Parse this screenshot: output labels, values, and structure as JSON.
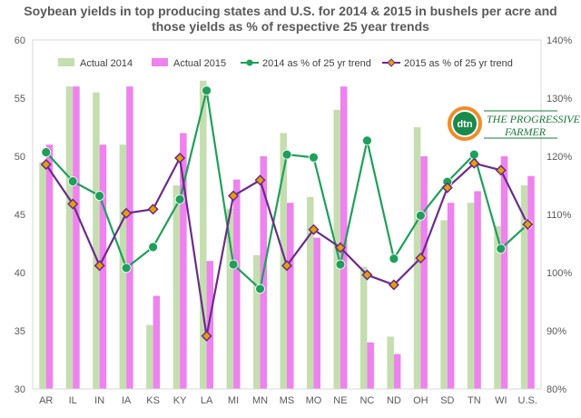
{
  "chart_data": {
    "type": "bar",
    "title": "Soybean yields in top producing states and U.S. for 2014 & 2015 in bushels per acre and those yields as % of respective 25 year trends",
    "categories": [
      "AR",
      "IL",
      "IN",
      "IA",
      "KS",
      "KY",
      "LA",
      "MI",
      "MN",
      "MS",
      "MO",
      "NE",
      "NC",
      "ND",
      "OH",
      "SD",
      "TN",
      "WI",
      "U.S."
    ],
    "ylim": [
      30,
      60
    ],
    "y_ticks": [
      "30",
      "35",
      "40",
      "45",
      "50",
      "55",
      "60"
    ],
    "y2lim": [
      80,
      140
    ],
    "y2_ticks": [
      "80%",
      "90%",
      "100%",
      "110%",
      "120%",
      "130%",
      "140%"
    ],
    "legend_position": "top",
    "grid": false,
    "series": [
      {
        "name": "Actual 2014",
        "kind": "bar",
        "axis": "left",
        "color": "#c5deb0",
        "values": [
          49.5,
          56,
          55.5,
          51,
          35.5,
          47.5,
          56.5,
          45.5,
          41.5,
          52,
          46.5,
          54,
          40.5,
          34.5,
          52.5,
          44.5,
          46,
          44,
          47.5
        ]
      },
      {
        "name": "Actual 2015",
        "kind": "bar",
        "axis": "left",
        "color": "#ee82ee",
        "values": [
          51,
          56,
          51,
          56,
          38,
          52,
          41,
          48,
          50,
          46,
          43,
          56,
          34,
          33,
          50,
          46,
          47,
          50,
          48.3
        ]
      },
      {
        "name": "2014 as % of 25 yr trend",
        "kind": "line",
        "axis": "right",
        "color": "#1ea05a",
        "marker_color": "#1ea05a",
        "values": [
          120.7,
          115.7,
          113.2,
          100.8,
          104.4,
          112.6,
          131.3,
          101.4,
          97.2,
          120.3,
          119.8,
          101.4,
          122.7,
          102.4,
          109.8,
          115.6,
          120.3,
          104.1,
          108.3
        ]
      },
      {
        "name": "2015 as % of 25 yr trend",
        "kind": "line",
        "axis": "right",
        "color": "#6a2c8c",
        "marker_color": "#e8a000",
        "values": [
          118.6,
          111.8,
          101.2,
          110.2,
          110.9,
          119.7,
          89.1,
          113.2,
          115.9,
          101.2,
          107.4,
          104.3,
          99.6,
          97.9,
          102.5,
          114.6,
          118.8,
          117.6,
          108.3
        ]
      }
    ]
  },
  "logo": {
    "badge": "dtn",
    "name_line1": "THE PROGRESSIVE",
    "name_line2": "FARMER"
  }
}
